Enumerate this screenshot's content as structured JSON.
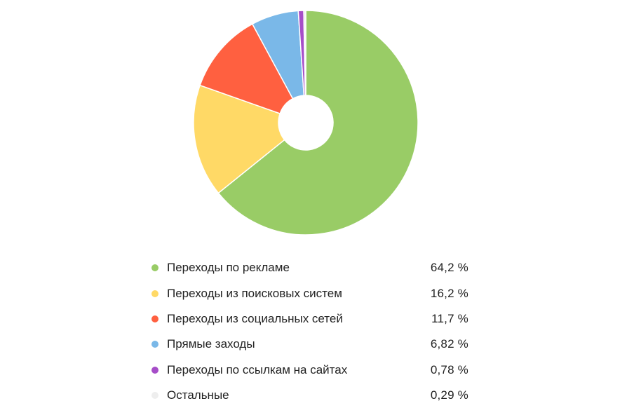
{
  "chart_data": {
    "type": "pie",
    "variant": "donut",
    "title": "",
    "categories": [
      "Переходы по рекламе",
      "Переходы из поисковых систем",
      "Переходы из социальных сетей",
      "Прямые заходы",
      "Переходы по ссылкам на сайтах",
      "Остальные"
    ],
    "values": [
      64.2,
      16.2,
      11.7,
      6.82,
      0.78,
      0.29
    ],
    "value_labels": [
      "64,2 %",
      "16,2 %",
      "11,7 %",
      "6,82 %",
      "0,78 %",
      "0,29 %"
    ],
    "colors": [
      "#99cc66",
      "#ffd966",
      "#ff6040",
      "#7ab8e8",
      "#a64dc8",
      "#eeeeee"
    ],
    "start_angle": "12 o'clock",
    "direction": "clockwise",
    "legend_position": "bottom"
  }
}
